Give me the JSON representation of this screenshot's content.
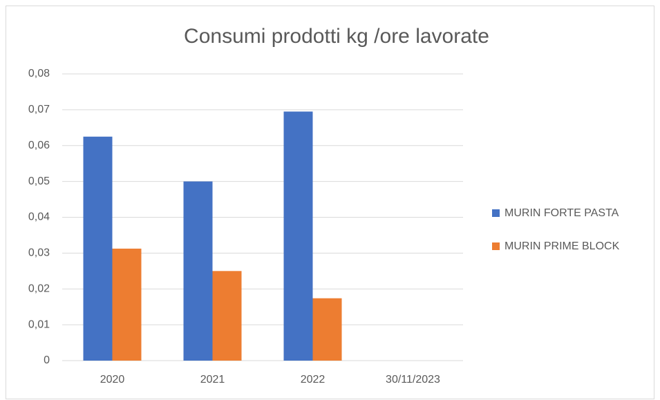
{
  "chart_data": {
    "type": "bar",
    "title": "Consumi prodotti kg /ore lavorate",
    "categories": [
      "2020",
      "2021",
      "2022",
      "30/11/2023"
    ],
    "series": [
      {
        "name": "MURIN FORTE PASTA",
        "color": "#4472c4",
        "values": [
          0.0625,
          0.05,
          0.0695,
          null
        ]
      },
      {
        "name": "MURIN PRIME BLOCK",
        "color": "#ed7d31",
        "values": [
          0.03125,
          0.025,
          0.0174,
          null
        ]
      }
    ],
    "ylim": [
      0,
      0.08
    ],
    "yticks": [
      0,
      {
        "value": 0.01,
        "label": "0,01"
      },
      {
        "value": 0.02,
        "label": "0,02"
      },
      {
        "value": 0.03,
        "label": "0,03"
      },
      {
        "value": 0.04,
        "label": "0,04"
      },
      {
        "value": 0.05,
        "label": "0,05"
      },
      {
        "value": 0.06,
        "label": "0,06"
      },
      {
        "value": 0.07,
        "label": "0,07"
      },
      {
        "value": 0.08,
        "label": "0,08"
      }
    ],
    "grid": true,
    "legend": "right"
  }
}
